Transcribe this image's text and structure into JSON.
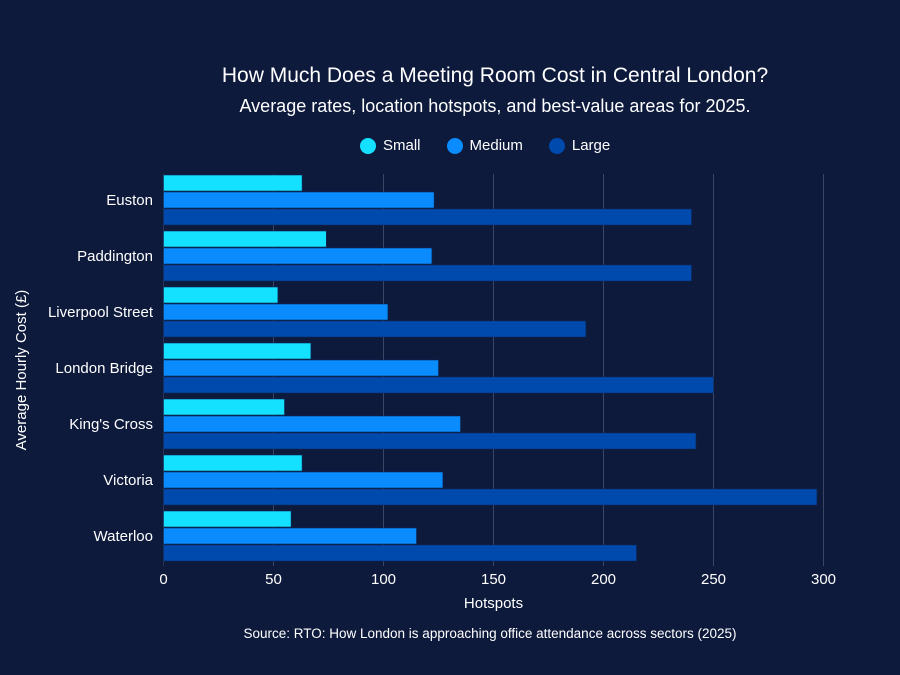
{
  "chart_data": {
    "type": "bar",
    "orientation": "horizontal",
    "title": "How Much Does a Meeting Room Cost in Central London?",
    "subtitle": "Average rates, location hotspots, and best-value areas for 2025.",
    "xlabel": "Hotspots",
    "ylabel": "Average Hourly Cost (£)",
    "xlim": [
      0,
      300
    ],
    "xticks": [
      0,
      50,
      100,
      150,
      200,
      250,
      300
    ],
    "grid": true,
    "legend_placement": "top",
    "categories": [
      "Euston",
      "Paddington",
      "Liverpool Street",
      "London Bridge",
      "King's Cross",
      "Victoria",
      "Waterloo"
    ],
    "series": [
      {
        "name": "Small",
        "color": "#14e0ff",
        "values": [
          63,
          74,
          52,
          67,
          55,
          63,
          58
        ]
      },
      {
        "name": "Medium",
        "color": "#0a8cff",
        "values": [
          123,
          122,
          102,
          125,
          135,
          127,
          115
        ]
      },
      {
        "name": "Large",
        "color": "#004aad",
        "values": [
          240,
          240,
          192,
          250,
          242,
          297,
          215
        ]
      }
    ],
    "source": "Source: RTO: How London is approaching office attendance across sectors (2025)"
  },
  "colors": {
    "background": "#0d1a3c",
    "grid": "#3a4666"
  }
}
